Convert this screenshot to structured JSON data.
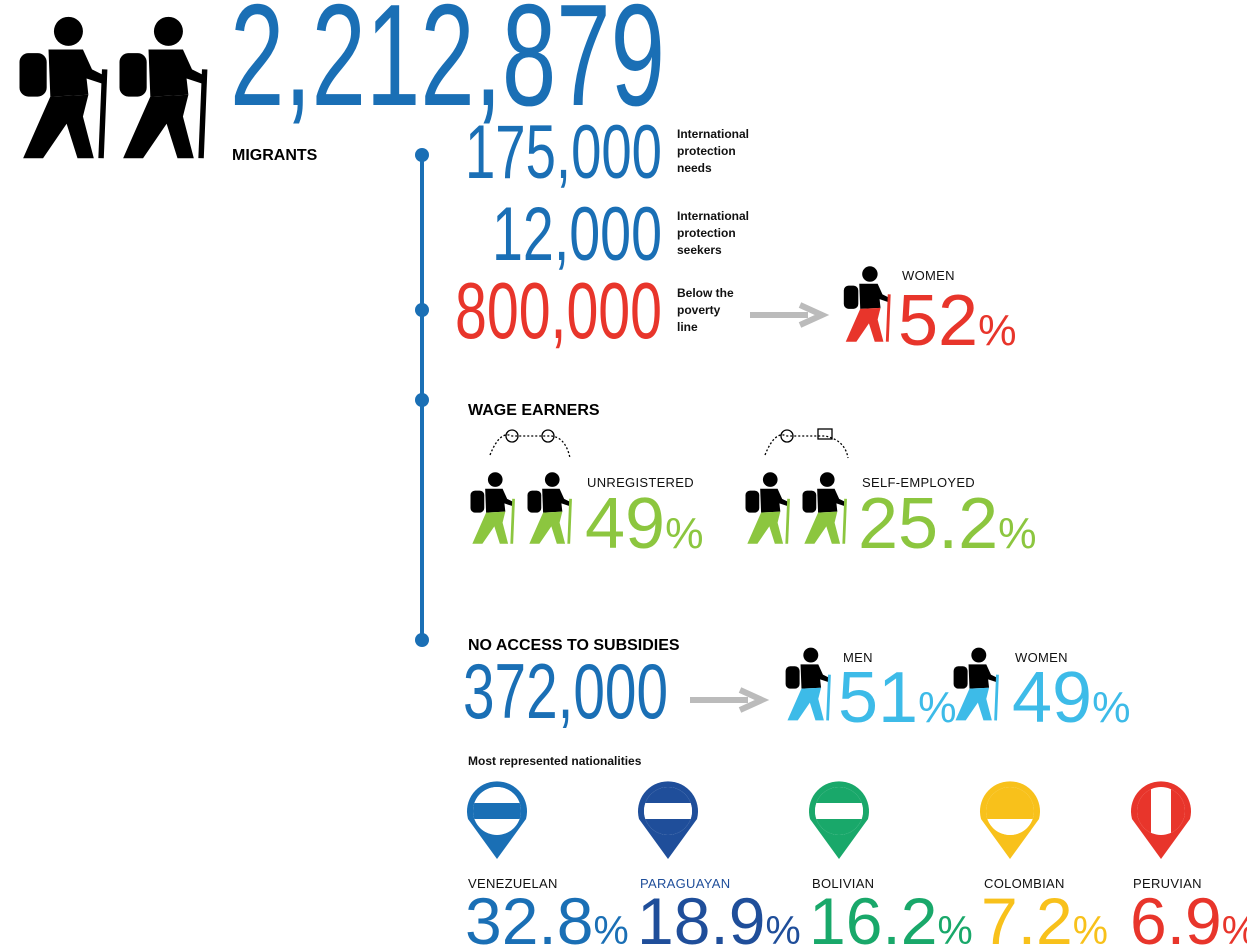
{
  "header": {
    "total": "2,212,879",
    "label": "MIGRANTS"
  },
  "protection": [
    {
      "value": "175,000",
      "label": [
        "International",
        "protection",
        "needs"
      ]
    },
    {
      "value": "12,000",
      "label": [
        "International",
        "protection",
        "seekers"
      ]
    }
  ],
  "poverty": {
    "value": "800,000",
    "label": [
      "Below the",
      "poverty",
      "line"
    ],
    "group": "WOMEN",
    "percent": "52",
    "unit": "%"
  },
  "wage_earners": {
    "title": "WAGE EARNERS",
    "items": [
      {
        "label": "UNREGISTERED",
        "percent": "49",
        "unit": "%"
      },
      {
        "label": "SELF-EMPLOYED",
        "percent": "25.2",
        "unit": "%"
      }
    ]
  },
  "subsidies": {
    "title": "NO ACCESS TO SUBSIDIES",
    "value": "372,000",
    "items": [
      {
        "label": "MEN",
        "percent": "51",
        "unit": "%"
      },
      {
        "label": "WOMEN",
        "percent": "49",
        "unit": "%"
      }
    ]
  },
  "nationalities": {
    "title": "Most represented nationalities",
    "items": [
      {
        "name": "VENEZUELAN",
        "percent": "32.8",
        "unit": "%"
      },
      {
        "name": "PARAGUAYAN",
        "percent": "18.9",
        "unit": "%"
      },
      {
        "name": "BOLIVIAN",
        "percent": "16.2",
        "unit": "%"
      },
      {
        "name": "COLOMBIAN",
        "percent": "7.2",
        "unit": "%"
      },
      {
        "name": "PERUVIAN",
        "percent": "6.9",
        "unit": "%"
      }
    ]
  }
}
